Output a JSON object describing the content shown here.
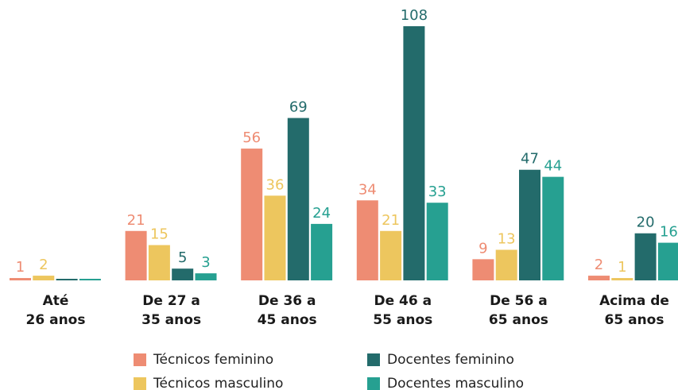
{
  "chart_data": {
    "type": "bar",
    "categories": [
      [
        "Até",
        "26 anos"
      ],
      [
        "De 27 a",
        "35 anos"
      ],
      [
        "De 36 a",
        "45 anos"
      ],
      [
        "De 46 a",
        "55 anos"
      ],
      [
        "De 56 a",
        "65 anos"
      ],
      [
        "Acima de",
        "65 anos"
      ]
    ],
    "series": [
      {
        "name": "Técnicos feminino",
        "color": "#ee8c73",
        "values": [
          1,
          21,
          56,
          34,
          9,
          2
        ]
      },
      {
        "name": "Técnicos masculino",
        "color": "#edc65e",
        "values": [
          2,
          15,
          36,
          21,
          13,
          1
        ]
      },
      {
        "name": "Docentes feminino",
        "color": "#236b6b",
        "values": [
          0,
          5,
          69,
          108,
          47,
          20
        ]
      },
      {
        "name": "Docentes masculino",
        "color": "#26a091",
        "values": [
          0,
          3,
          24,
          33,
          44,
          16
        ]
      }
    ]
  }
}
